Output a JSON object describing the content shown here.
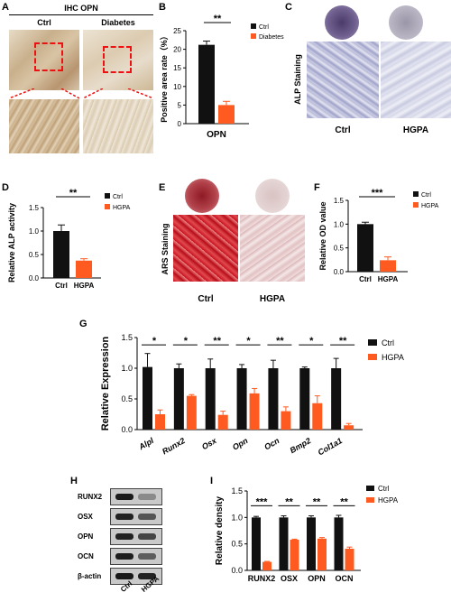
{
  "panels": {
    "A": {
      "letter": "A",
      "title": "IHC OPN",
      "col1": "Ctrl",
      "col2": "Diabetes"
    },
    "B": {
      "letter": "B"
    },
    "C": {
      "letter": "C",
      "side": "ALP Staining",
      "col1": "Ctrl",
      "col2": "HGPA"
    },
    "D": {
      "letter": "D"
    },
    "E": {
      "letter": "E",
      "side": "ARS Staining",
      "col1": "Ctrl",
      "col2": "HGPA"
    },
    "F": {
      "letter": "F"
    },
    "G": {
      "letter": "G"
    },
    "H": {
      "letter": "H",
      "bands": [
        "RUNX2",
        "OSX",
        "OPN",
        "OCN",
        "β-actin"
      ],
      "lanes": [
        "Ctrl",
        "HGPA"
      ]
    },
    "I": {
      "letter": "I"
    }
  },
  "colors": {
    "ctrl": "#111111",
    "treat": "#ff5a1f"
  },
  "chart_data": [
    {
      "id": "B",
      "type": "bar",
      "categories": [
        "OPN"
      ],
      "series": [
        {
          "name": "Ctrl",
          "values": [
            21.2
          ],
          "err": [
            1.0
          ]
        },
        {
          "name": "Diabetes",
          "values": [
            5.0
          ],
          "err": [
            1.0
          ]
        }
      ],
      "ylabel": "Positive area rate（%）",
      "xlabel": "OPN",
      "ylim": [
        0,
        25
      ],
      "yticks": [
        0,
        5,
        10,
        15,
        20,
        25
      ],
      "significance": [
        "**"
      ],
      "legend": "top-right"
    },
    {
      "id": "D",
      "type": "bar",
      "categories": [
        "Ctrl",
        "HGPA"
      ],
      "values": [
        1.0,
        0.37
      ],
      "err": [
        0.13,
        0.04
      ],
      "ylabel": "Relative ALP activity",
      "ylim": [
        0,
        1.5
      ],
      "yticks": [
        "0.0",
        "0.5",
        "1.0",
        "1.5"
      ],
      "significance": "**",
      "legend_entries": [
        "Ctrl",
        "HGPA"
      ],
      "legend": "top-right"
    },
    {
      "id": "F",
      "type": "bar",
      "categories": [
        "Ctrl",
        "HGPA"
      ],
      "values": [
        1.0,
        0.24
      ],
      "err": [
        0.04,
        0.07
      ],
      "ylabel": "Relative OD value",
      "ylim": [
        0,
        1.5
      ],
      "yticks": [
        "0.0",
        "0.5",
        "1.0",
        "1.5"
      ],
      "significance": "***",
      "legend_entries": [
        "Ctrl",
        "HGPA"
      ],
      "legend": "top-right"
    },
    {
      "id": "G",
      "type": "bar",
      "categories": [
        "Alpl",
        "Runx2",
        "Osx",
        "Opn",
        "Ocn",
        "Bmp2",
        "Col1a1"
      ],
      "series": [
        {
          "name": "Ctrl",
          "values": [
            1.02,
            1.0,
            1.0,
            1.0,
            1.0,
            1.0,
            1.0
          ],
          "err": [
            0.22,
            0.07,
            0.15,
            0.06,
            0.13,
            0.02,
            0.16
          ]
        },
        {
          "name": "HGPA",
          "values": [
            0.25,
            0.55,
            0.24,
            0.59,
            0.3,
            0.43,
            0.07
          ],
          "err": [
            0.07,
            0.02,
            0.06,
            0.08,
            0.07,
            0.12,
            0.03
          ]
        }
      ],
      "ylabel": "Relative Expression",
      "ylim": [
        0,
        1.5
      ],
      "yticks": [
        "0.0",
        "0.5",
        "1.0",
        "1.5"
      ],
      "significance": [
        "*",
        "*",
        "**",
        "*",
        "**",
        "*",
        "**"
      ],
      "legend": "top-right"
    },
    {
      "id": "I",
      "type": "bar",
      "categories": [
        "RUNX2",
        "OSX",
        "OPN",
        "OCN"
      ],
      "series": [
        {
          "name": "Ctrl",
          "values": [
            1.0,
            1.0,
            1.0,
            1.0
          ],
          "err": [
            0.02,
            0.03,
            0.03,
            0.04
          ]
        },
        {
          "name": "HGPA",
          "values": [
            0.16,
            0.58,
            0.6,
            0.41
          ],
          "err": [
            0.01,
            0.01,
            0.02,
            0.03
          ]
        }
      ],
      "ylabel": "Relative density",
      "ylim": [
        0,
        1.5
      ],
      "yticks": [
        "0.0",
        "0.5",
        "1.0",
        "1.5"
      ],
      "significance": [
        "***",
        "**",
        "**",
        "**"
      ],
      "legend": "top-right"
    }
  ]
}
